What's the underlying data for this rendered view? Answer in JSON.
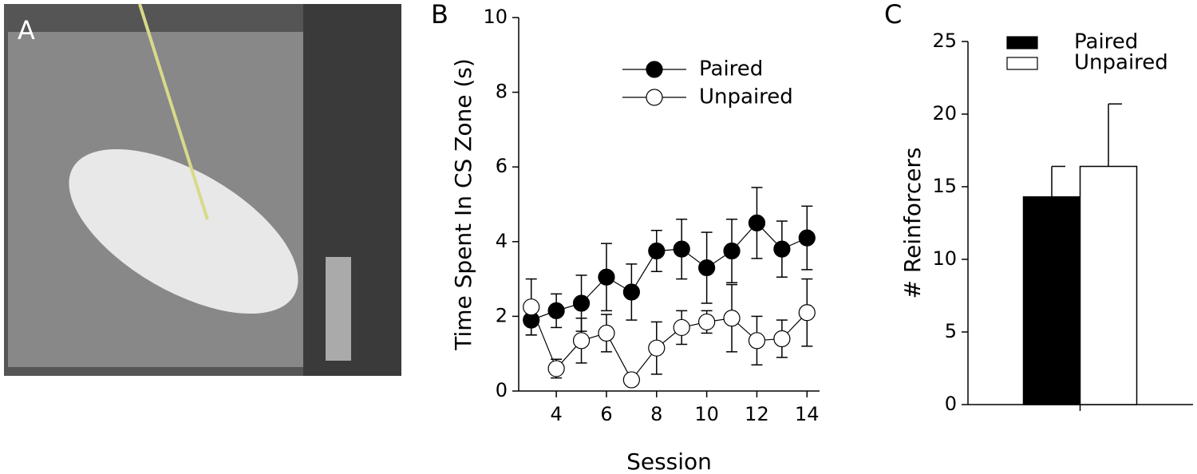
{
  "photo": {
    "label": "A"
  },
  "chart_data": [
    {
      "type": "line",
      "panel_label": "B",
      "x_label": "Session",
      "y_label": "Time Spent In CS Zone (s)",
      "x": [
        3,
        4,
        5,
        6,
        7,
        8,
        9,
        10,
        11,
        12,
        13,
        14
      ],
      "xlim": [
        2.5,
        14.5
      ],
      "xticks": [
        4,
        6,
        8,
        10,
        12,
        14
      ],
      "ylim": [
        0,
        10
      ],
      "yticks": [
        0,
        2,
        4,
        6,
        8,
        10
      ],
      "legend": "top-center",
      "series": [
        {
          "name": "Paired",
          "color": "#000000",
          "values": [
            1.9,
            2.15,
            2.35,
            3.05,
            2.65,
            3.75,
            3.8,
            3.3,
            3.75,
            4.5,
            3.8,
            4.1
          ],
          "errors": [
            0.4,
            0.45,
            0.75,
            0.9,
            0.75,
            0.55,
            0.8,
            0.95,
            0.85,
            0.95,
            0.75,
            0.85
          ]
        },
        {
          "name": "Unpaired",
          "color": "#ffffff",
          "values": [
            2.25,
            0.6,
            1.35,
            1.55,
            0.3,
            1.15,
            1.7,
            1.85,
            1.95,
            1.35,
            1.4,
            2.1
          ],
          "errors": [
            0.75,
            0.25,
            0.6,
            0.5,
            0.1,
            0.7,
            0.45,
            0.3,
            0.9,
            0.65,
            0.5,
            0.9
          ]
        }
      ]
    },
    {
      "type": "bar",
      "panel_label": "C",
      "y_label": "# Reinforcers",
      "categories": [
        null
      ],
      "ylim": [
        0,
        25
      ],
      "yticks": [
        0,
        5,
        10,
        15,
        20,
        25
      ],
      "legend": "top-left",
      "series": [
        {
          "name": "Paired",
          "color": "#000000",
          "values": [
            14.3
          ],
          "errors": [
            2.1
          ]
        },
        {
          "name": "Unpaired",
          "color": "#ffffff",
          "values": [
            16.4
          ],
          "errors": [
            4.3
          ]
        }
      ]
    }
  ]
}
